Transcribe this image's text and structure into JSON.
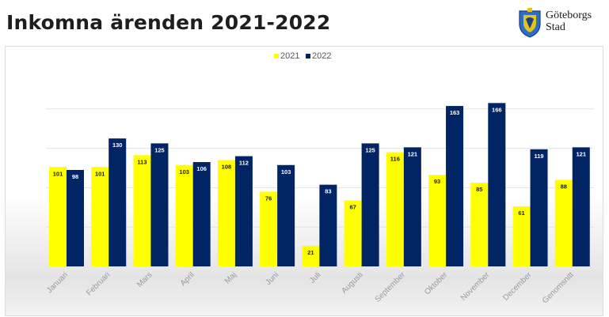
{
  "header": {
    "title": "Inkomna ärenden 2021-2022",
    "logo_line1": "Göteborgs",
    "logo_line2": "Stad"
  },
  "colors": {
    "series_2021": "#ffff00",
    "series_2022": "#002464",
    "gridline": "#e2e2e2",
    "tick_label": "#9a9a9a"
  },
  "chart_data": {
    "type": "bar",
    "title": "",
    "xlabel": "",
    "ylabel": "",
    "ylim": [
      0,
      200
    ],
    "grid": true,
    "legend_position": "top-center",
    "categories": [
      "Januari",
      "Februari",
      "Mars",
      "April",
      "Maj",
      "Juni",
      "Juli",
      "Augusti",
      "September",
      "Oktober",
      "November",
      "December",
      "Genomsnitt"
    ],
    "series": [
      {
        "name": "2021",
        "values": [
          101,
          101,
          113,
          103,
          108,
          76,
          21,
          67,
          116,
          93,
          85,
          61,
          88
        ]
      },
      {
        "name": "2022",
        "values": [
          98,
          130,
          125,
          106,
          112,
          103,
          83,
          125,
          121,
          163,
          166,
          119,
          121
        ]
      }
    ]
  }
}
